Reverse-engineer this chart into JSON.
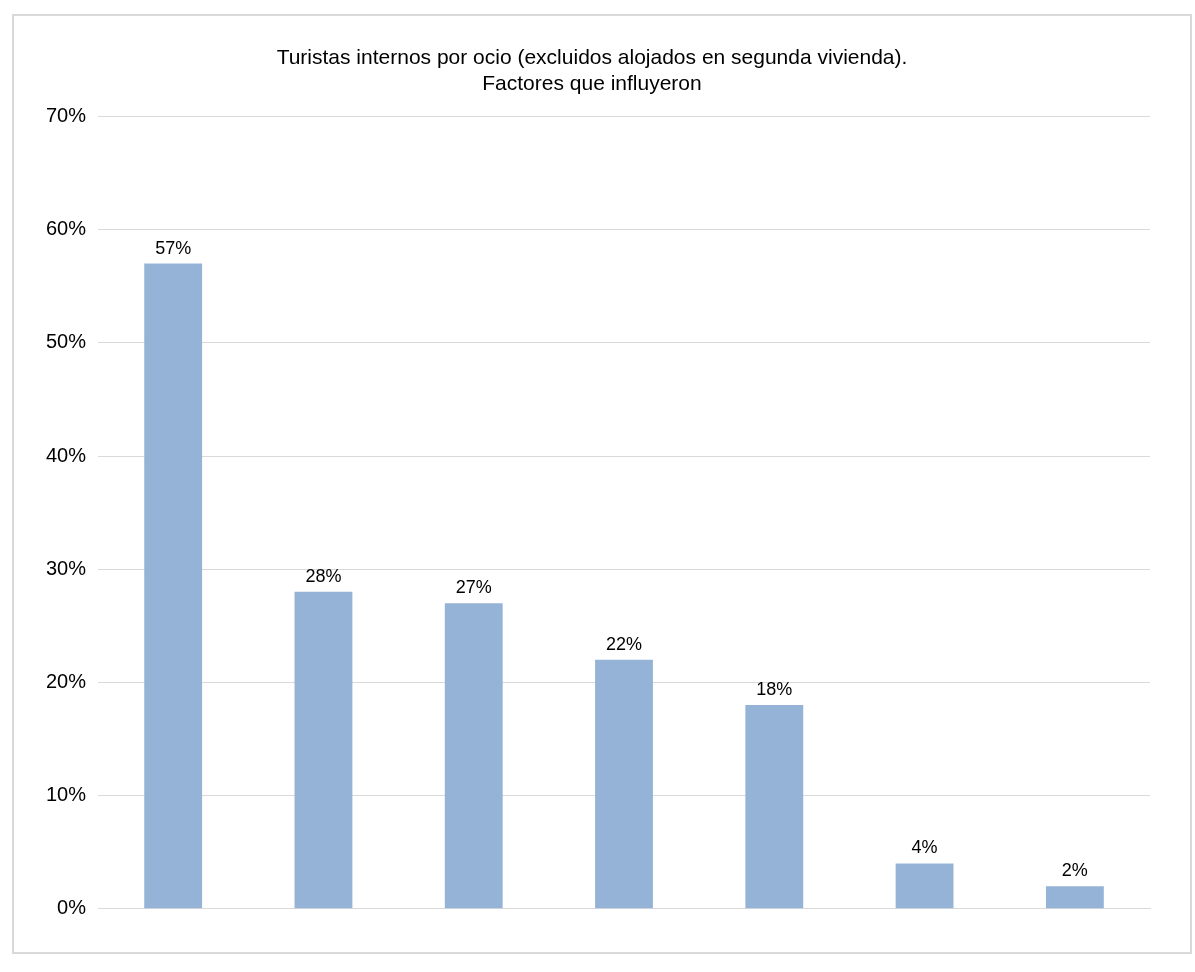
{
  "chart_data": {
    "type": "bar",
    "title": "Turistas internos por ocio (excluidos alojados en segunda vivienda). Factores que influyeron",
    "categories": [
      null,
      null,
      null,
      null,
      null,
      null,
      null
    ],
    "values": [
      57,
      28,
      27,
      22,
      18,
      4,
      2
    ],
    "value_labels": [
      "57%",
      "28%",
      "27%",
      "22%",
      "18%",
      "4%",
      "2%"
    ],
    "color": "#95b3d7",
    "ylim": [
      0,
      70
    ],
    "yticks": [
      {
        "value": 0,
        "label": "0%"
      },
      {
        "value": 10,
        "label": "10%"
      },
      {
        "value": 20,
        "label": "20%"
      },
      {
        "value": 30,
        "label": "30%"
      },
      {
        "value": 40,
        "label": "40%"
      },
      {
        "value": 50,
        "label": "50%"
      },
      {
        "value": 60,
        "label": "60%"
      },
      {
        "value": 70,
        "label": "70%"
      }
    ],
    "grid": "y",
    "legend": false
  }
}
